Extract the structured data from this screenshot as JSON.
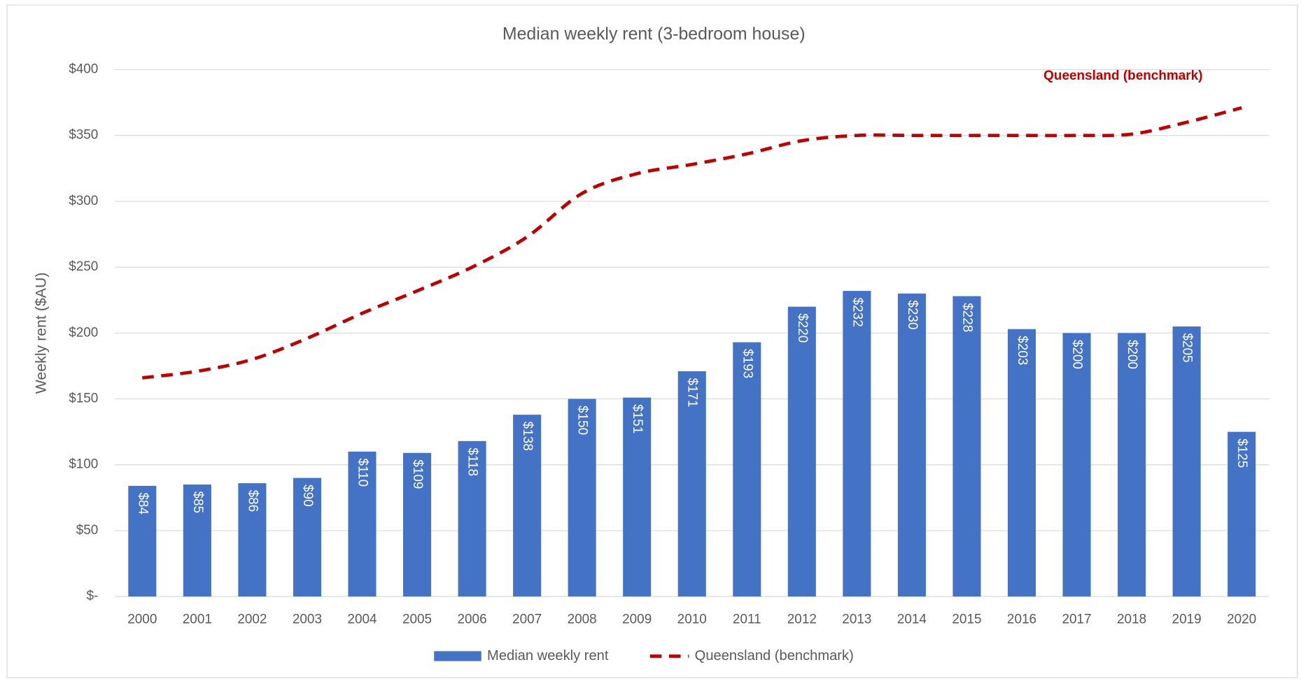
{
  "chart_data": {
    "type": "bar",
    "title": "Median weekly rent (3-bedroom house)",
    "y_axis_label": "Weekly rent ($AU)",
    "annotation": "Queensland (benchmark)",
    "categories": [
      "2000",
      "2001",
      "2002",
      "2003",
      "2004",
      "2005",
      "2006",
      "2007",
      "2008",
      "2009",
      "2010",
      "2011",
      "2012",
      "2013",
      "2014",
      "2015",
      "2016",
      "2017",
      "2018",
      "2019",
      "2020"
    ],
    "series": [
      {
        "name": "Median weekly rent",
        "type": "bar",
        "color": "#4472c4",
        "values": [
          84,
          85,
          86,
          90,
          110,
          109,
          118,
          138,
          150,
          151,
          171,
          193,
          220,
          232,
          230,
          228,
          203,
          200,
          200,
          205,
          125
        ],
        "value_labels": [
          "$84",
          "$85",
          "$86",
          "$90",
          "$110",
          "$109",
          "$118",
          "$138",
          "$150",
          "$151",
          "$171",
          "$193",
          "$220",
          "$232",
          "$230",
          "$228",
          "$203",
          "$200",
          "$200",
          "$205",
          "$125"
        ]
      },
      {
        "name": "Queensland (benchmark)",
        "type": "line",
        "color": "#c00000",
        "dashed": true,
        "values": [
          166,
          171,
          180,
          196,
          215,
          232,
          250,
          273,
          306,
          321,
          328,
          336,
          346,
          350,
          350,
          350,
          350,
          350,
          351,
          360,
          371
        ]
      }
    ],
    "ylim": [
      0,
      400
    ],
    "yticks": [
      {
        "value": 0,
        "label": "$-"
      },
      {
        "value": 50,
        "label": "$50"
      },
      {
        "value": 100,
        "label": "$100"
      },
      {
        "value": 150,
        "label": "$150"
      },
      {
        "value": 200,
        "label": "$200"
      },
      {
        "value": 250,
        "label": "$250"
      },
      {
        "value": 300,
        "label": "$300"
      },
      {
        "value": 350,
        "label": "$350"
      },
      {
        "value": 400,
        "label": "$400"
      }
    ],
    "grid": true,
    "legend": "bottom"
  }
}
